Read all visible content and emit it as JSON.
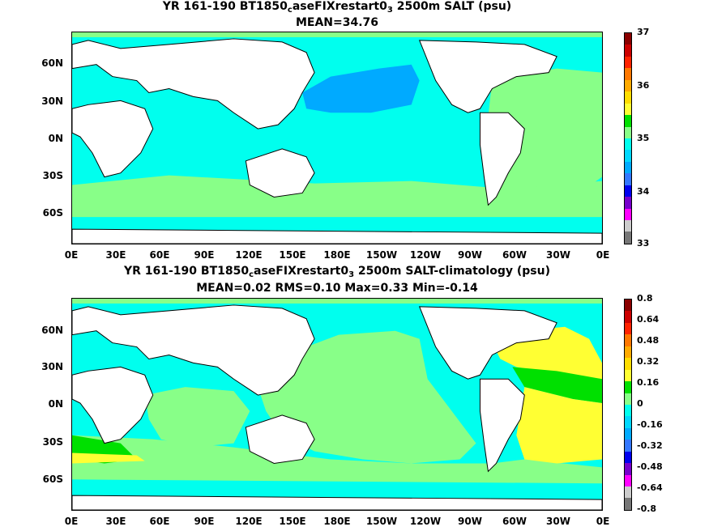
{
  "panels": [
    {
      "title_pre": "YR 161-190 BT1850",
      "title_sub1": "c",
      "title_mid": "aseFIXrestart0",
      "title_sub2": "3",
      "title_post": " 2500m SALT (psu)",
      "stats": "MEAN=34.76",
      "colorbar_labels": [
        "37",
        "36",
        "35",
        "34",
        "33"
      ],
      "colorbar_colors": [
        "#8b0000",
        "#cc0000",
        "#ff2200",
        "#ff7700",
        "#ffaa00",
        "#ffdd00",
        "#ffff33",
        "#00e000",
        "#88ff88",
        "#00ffee",
        "#00d8ff",
        "#00aaff",
        "#3377ff",
        "#0000ee",
        "#7700cc",
        "#ff00ff",
        "#cccccc",
        "#777777"
      ]
    },
    {
      "title_pre": "YR 161-190 BT1850",
      "title_sub1": "c",
      "title_mid": "aseFIXrestart0",
      "title_sub2": "3",
      "title_post": " 2500m SALT-climatology (psu)",
      "stats": "MEAN=0.02   RMS=0.10   Max=0.33   Min=-0.14",
      "colorbar_labels": [
        "0.8",
        "0.64",
        "0.48",
        "0.32",
        "0.16",
        "0",
        "-0.16",
        "-0.32",
        "-0.48",
        "-0.64",
        "-0.8"
      ],
      "colorbar_colors": [
        "#8b0000",
        "#cc0000",
        "#ff2200",
        "#ff7700",
        "#ffaa00",
        "#ffdd00",
        "#ffff33",
        "#00e000",
        "#88ff88",
        "#00ffee",
        "#00d8ff",
        "#00aaff",
        "#3377ff",
        "#0000ee",
        "#7700cc",
        "#ff00ff",
        "#cccccc",
        "#777777"
      ]
    }
  ],
  "lat_labels": [
    "60N",
    "30N",
    "0N",
    "30S",
    "60S"
  ],
  "lon_labels": [
    "0E",
    "30E",
    "60E",
    "90E",
    "120E",
    "150E",
    "180E",
    "150W",
    "120W",
    "90W",
    "60W",
    "30W",
    "0E"
  ],
  "colors": {
    "land": "#ffffff",
    "coast": "#000000"
  }
}
